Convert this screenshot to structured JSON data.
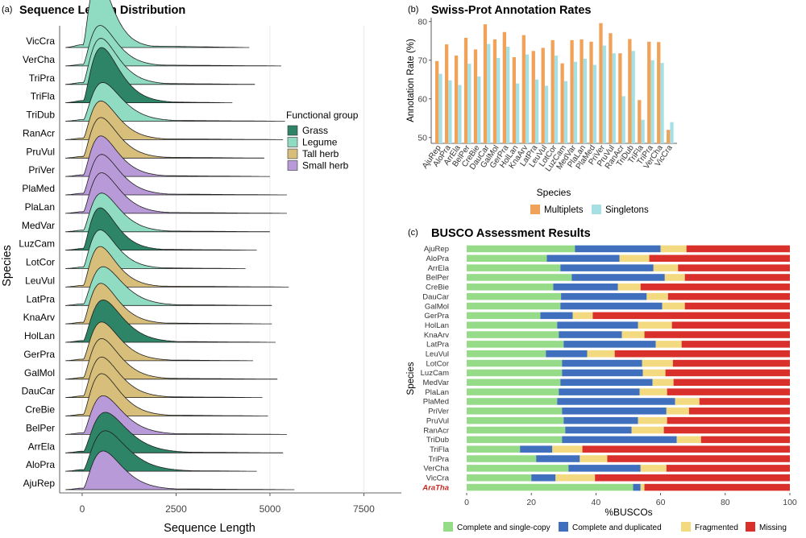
{
  "colors": {
    "Grass": "#2e8466",
    "Legume": "#8fdcc2",
    "Tall herb": "#d7be7a",
    "Small herb": "#b99ad8",
    "multiplets": "#f0a258",
    "singletons": "#a7e0e4",
    "complete_single": "#96dc88",
    "complete_duplicated": "#3f6fbd",
    "fragmented": "#f3da80",
    "missing": "#d9302c",
    "aratha": "#c42a25"
  },
  "chart_data": [
    {
      "panel_label": "(a)",
      "type": "area",
      "title": "Sequence Length Distribution",
      "xlabel": "Sequence Length",
      "ylabel": "Species",
      "xlim": [
        -600,
        8500
      ],
      "xticks": [
        0,
        2500,
        5000,
        7500
      ],
      "xtick_labels": [
        "0",
        "2500",
        "5000",
        "7500"
      ],
      "legend": {
        "title": "Functional group",
        "position": "right",
        "entries": [
          "Grass",
          "Legume",
          "Tall herb",
          "Small herb"
        ]
      },
      "series": [
        {
          "name": "VicCra",
          "group": "Legume",
          "peak": 420,
          "height": 1.9,
          "tail_end": 4450
        },
        {
          "name": "VerCha",
          "group": "Legume",
          "peak": 480,
          "height": 1.1,
          "tail_end": 5300
        },
        {
          "name": "TriPra",
          "group": "Legume",
          "peak": 500,
          "height": 1.25,
          "tail_end": 4600
        },
        {
          "name": "TriFla",
          "group": "Grass",
          "peak": 520,
          "height": 1.5,
          "tail_end": 4000
        },
        {
          "name": "TriDub",
          "group": "Legume",
          "peak": 550,
          "height": 1.05,
          "tail_end": 5400
        },
        {
          "name": "RanAcr",
          "group": "Tall herb",
          "peak": 500,
          "height": 1.05,
          "tail_end": 5350
        },
        {
          "name": "PruVul",
          "group": "Tall herb",
          "peak": 500,
          "height": 1.1,
          "tail_end": 4850
        },
        {
          "name": "PriVer",
          "group": "Small herb",
          "peak": 500,
          "height": 1.1,
          "tail_end": 5000
        },
        {
          "name": "PlaMed",
          "group": "Small herb",
          "peak": 520,
          "height": 1.1,
          "tail_end": 5450
        },
        {
          "name": "PlaLan",
          "group": "Small herb",
          "peak": 520,
          "height": 1.1,
          "tail_end": 5450
        },
        {
          "name": "MedVar",
          "group": "Legume",
          "peak": 520,
          "height": 1.05,
          "tail_end": 5000
        },
        {
          "name": "LuzCam",
          "group": "Grass",
          "peak": 480,
          "height": 1.15,
          "tail_end": 4650
        },
        {
          "name": "LotCor",
          "group": "Legume",
          "peak": 480,
          "height": 1.05,
          "tail_end": 4350
        },
        {
          "name": "LeuVul",
          "group": "Tall herb",
          "peak": 480,
          "height": 1.1,
          "tail_end": 5500
        },
        {
          "name": "LatPra",
          "group": "Legume",
          "peak": 560,
          "height": 1.05,
          "tail_end": 5050
        },
        {
          "name": "KnaArv",
          "group": "Tall herb",
          "peak": 500,
          "height": 1.1,
          "tail_end": 5050
        },
        {
          "name": "HolLan",
          "group": "Grass",
          "peak": 560,
          "height": 1.15,
          "tail_end": 5150
        },
        {
          "name": "GerPra",
          "group": "Tall herb",
          "peak": 520,
          "height": 1.05,
          "tail_end": 4550
        },
        {
          "name": "GalMol",
          "group": "Tall herb",
          "peak": 520,
          "height": 1.1,
          "tail_end": 5200
        },
        {
          "name": "DauCar",
          "group": "Tall herb",
          "peak": 520,
          "height": 1.1,
          "tail_end": 4800
        },
        {
          "name": "CreBie",
          "group": "Tall herb",
          "peak": 520,
          "height": 1.15,
          "tail_end": 4950
        },
        {
          "name": "BelPer",
          "group": "Small herb",
          "peak": 560,
          "height": 1.05,
          "tail_end": 5450
        },
        {
          "name": "ArrEla",
          "group": "Grass",
          "peak": 620,
          "height": 1.1,
          "tail_end": 5350
        },
        {
          "name": "AloPra",
          "group": "Grass",
          "peak": 620,
          "height": 1.1,
          "tail_end": 4650
        },
        {
          "name": "AjuRep",
          "group": "Small herb",
          "peak": 560,
          "height": 1.05,
          "tail_end": 5650
        }
      ]
    },
    {
      "panel_label": "(b)",
      "type": "bar",
      "title": "Swiss-Prot Annotation Rates",
      "xlabel": "Species",
      "ylabel": "Annotation Rate (%)",
      "ylim": [
        48.5,
        81
      ],
      "yticks": [
        50,
        60,
        70,
        80
      ],
      "categories": [
        "AjuRep",
        "AloPra",
        "ArrEla",
        "BelPer",
        "CreBie",
        "DauCar",
        "GalMol",
        "GerPra",
        "HolLan",
        "KnaArv",
        "LatPra",
        "LeuVul",
        "LotCor",
        "LuzCam",
        "MedVar",
        "PlaLan",
        "PlaMed",
        "PriVer",
        "PruVul",
        "RanAcr",
        "TriDub",
        "TriFla",
        "TriPra",
        "VerCha",
        "VicCra"
      ],
      "series": [
        {
          "name": "Multiplets",
          "values": [
            69.8,
            74.1,
            71.2,
            75.8,
            72.8,
            79.3,
            75.4,
            77.3,
            70.8,
            76.5,
            72.4,
            73.2,
            75.2,
            69.2,
            75.2,
            75.4,
            74.8,
            79.6,
            77.0,
            71.8,
            75.5,
            59.7,
            74.8,
            74.7,
            52.0
          ]
        },
        {
          "name": "Singletons",
          "values": [
            66.5,
            64.8,
            63.6,
            69.1,
            65.8,
            74.2,
            70.6,
            73.5,
            64.0,
            71.5,
            65.0,
            63.4,
            71.2,
            64.6,
            69.6,
            70.4,
            68.8,
            73.8,
            71.8,
            60.7,
            72.4,
            54.6,
            70.0,
            69.3,
            54.0
          ]
        }
      ]
    },
    {
      "panel_label": "(c)",
      "type": "bar",
      "orientation": "horizontal",
      "stacked": true,
      "title": "BUSCO Assessment Results",
      "xlabel": "%BUSCOs",
      "ylabel": "Species",
      "xlim": [
        0,
        100
      ],
      "xticks": [
        0,
        20,
        40,
        60,
        80,
        100
      ],
      "categories": [
        "AjuRep",
        "AloPra",
        "ArrEla",
        "BelPer",
        "CreBie",
        "DauCar",
        "GalMol",
        "GerPra",
        "HolLan",
        "KnaArv",
        "LatPra",
        "LeuVul",
        "LotCor",
        "LuzCam",
        "MedVar",
        "PlaLan",
        "PlaMed",
        "PriVer",
        "PruVul",
        "RanAcr",
        "TriDub",
        "TriFla",
        "TriPra",
        "VerCha",
        "VicCra",
        "AraTha"
      ],
      "highlight_category": "AraTha",
      "series": [
        {
          "name": "Complete and single-copy",
          "values": [
            33.5,
            24.8,
            29.0,
            32.5,
            26.8,
            29.2,
            29.0,
            22.8,
            28.0,
            28.5,
            30.0,
            24.5,
            29.5,
            29.5,
            29.0,
            28.5,
            28.0,
            29.5,
            30.0,
            30.5,
            29.5,
            16.5,
            21.5,
            31.5,
            20.0,
            51.5
          ]
        },
        {
          "name": "Complete and duplicated",
          "values": [
            26.5,
            22.5,
            28.8,
            28.8,
            20.0,
            26.5,
            31.5,
            10.0,
            25.0,
            19.5,
            28.5,
            12.8,
            24.8,
            25.0,
            28.5,
            25.0,
            36.5,
            32.3,
            23.0,
            20.5,
            35.5,
            10.0,
            13.5,
            22.3,
            7.5,
            2.3
          ]
        },
        {
          "name": "Fragmented",
          "values": [
            8.0,
            9.2,
            7.6,
            6.2,
            7.0,
            6.6,
            7.0,
            6.2,
            10.5,
            7.0,
            8.0,
            8.5,
            9.5,
            7.0,
            6.5,
            8.5,
            7.5,
            7.0,
            9.0,
            10.0,
            7.5,
            9.3,
            8.5,
            8.0,
            12.2,
            1.2
          ]
        },
        {
          "name": "Missing",
          "values": [
            32.0,
            43.5,
            34.6,
            32.5,
            46.2,
            37.7,
            32.5,
            61.0,
            36.5,
            45.0,
            33.5,
            54.2,
            36.2,
            38.5,
            36.0,
            38.0,
            28.0,
            31.2,
            38.0,
            39.0,
            27.5,
            64.2,
            56.5,
            38.2,
            60.3,
            45.0
          ]
        }
      ]
    }
  ]
}
